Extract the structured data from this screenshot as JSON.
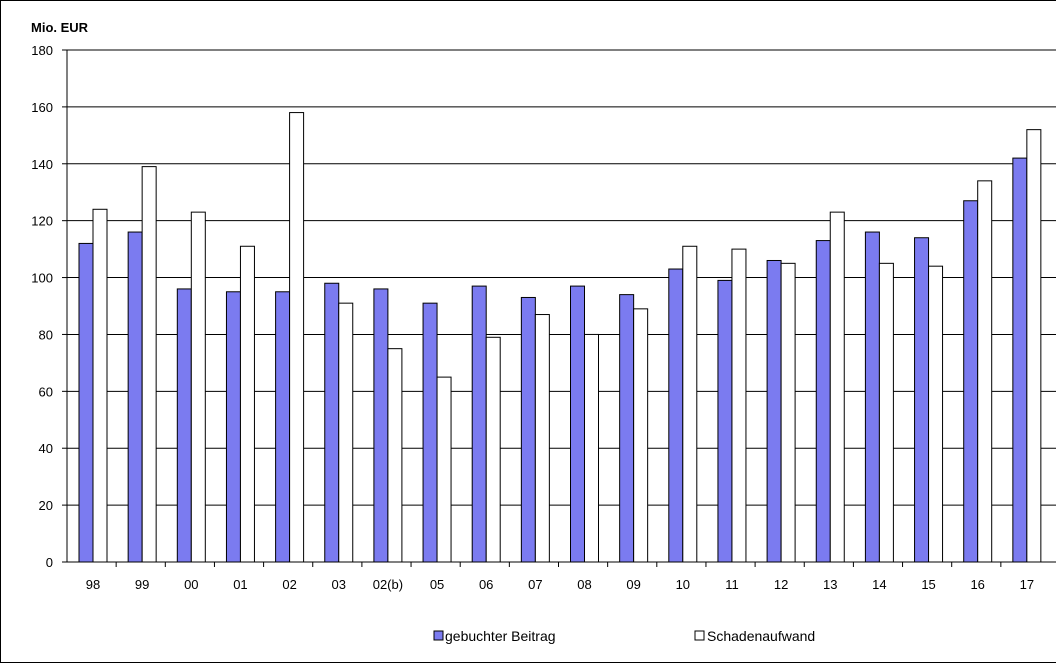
{
  "chart_data": {
    "type": "bar",
    "title": "Mio. EUR",
    "ylim": [
      0,
      180
    ],
    "yticks": [
      0,
      20,
      40,
      60,
      80,
      100,
      120,
      140,
      160,
      180
    ],
    "categories": [
      "98",
      "99",
      "00",
      "01",
      "02",
      "03",
      "02(b)",
      "05",
      "06",
      "07",
      "08",
      "09",
      "10",
      "11",
      "12",
      "13",
      "14",
      "15",
      "16",
      "17"
    ],
    "series": [
      {
        "name": "gebuchter Beitrag",
        "color": "#7b7bf0",
        "values": [
          112,
          116,
          96,
          95,
          95,
          98,
          96,
          91,
          97,
          93,
          97,
          94,
          103,
          99,
          106,
          113,
          116,
          114,
          127,
          142
        ]
      },
      {
        "name": "Schadenaufwand",
        "color": "#ffffff",
        "values": [
          124,
          139,
          123,
          111,
          158,
          91,
          75,
          65,
          79,
          87,
          80,
          89,
          111,
          110,
          105,
          123,
          105,
          104,
          134,
          152
        ]
      }
    ],
    "grid": true,
    "legend": "bottom"
  }
}
